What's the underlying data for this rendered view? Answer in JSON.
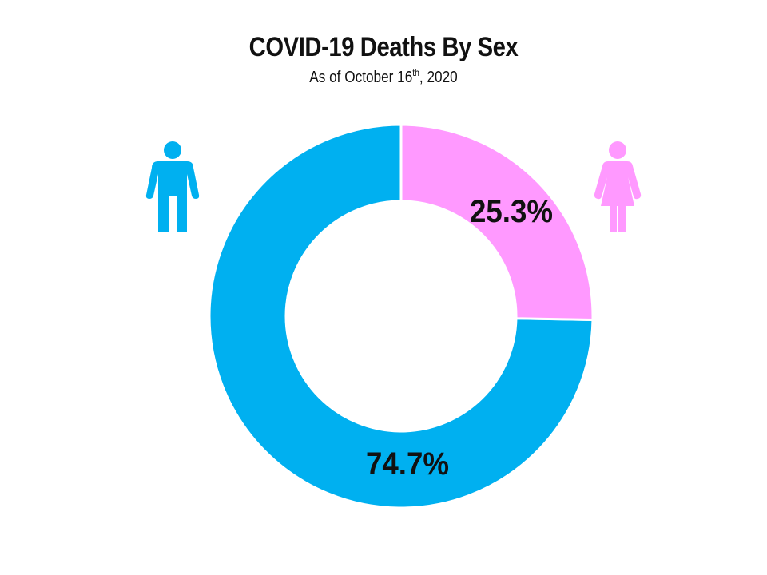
{
  "chart_data": {
    "type": "pie",
    "title": "COVID-19 Deaths By Sex",
    "subtitle": {
      "prefix": "As of October 16",
      "superscript": "th",
      "suffix": ", 2020"
    },
    "slices": [
      {
        "name": "Male",
        "value": 74.7,
        "label": "74.7%",
        "color": "#00b0f0"
      },
      {
        "name": "Female",
        "value": 25.3,
        "label": "25.3%",
        "color": "#ff99ff"
      }
    ],
    "icons": [
      {
        "name": "male-icon",
        "color": "#00b0f0"
      },
      {
        "name": "female-icon",
        "color": "#ff99ff"
      }
    ],
    "legend": "none"
  }
}
